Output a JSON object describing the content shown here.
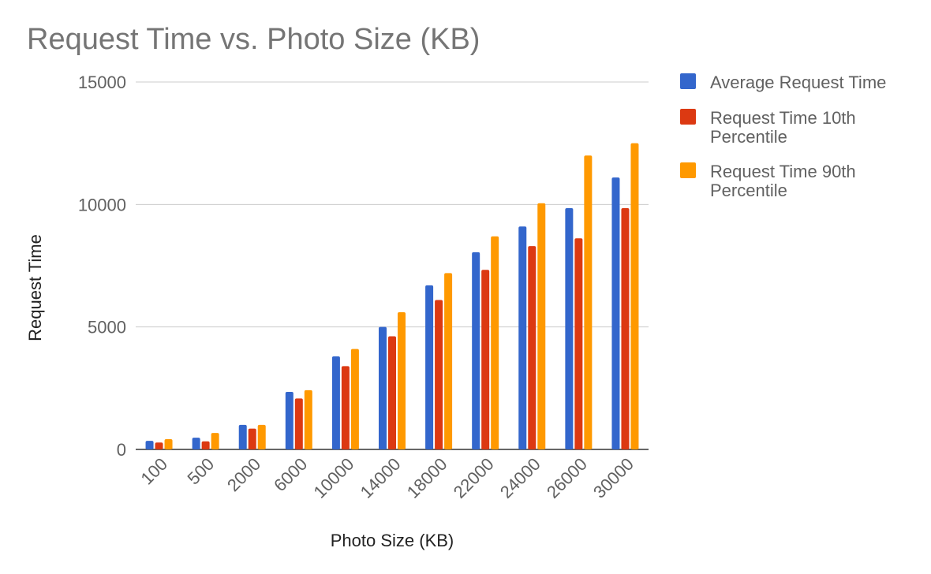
{
  "chart_data": {
    "type": "bar",
    "title": "Request Time vs. Photo Size (KB)",
    "xlabel": "Photo Size (KB)",
    "ylabel": "Request Time",
    "ylim": [
      0,
      15000
    ],
    "yticks": [
      "0",
      "5000",
      "10000",
      "15000"
    ],
    "grid": true,
    "legend_position": "right",
    "categories": [
      "100",
      "500",
      "2000",
      "6000",
      "10000",
      "14000",
      "18000",
      "22000",
      "24000",
      "26000",
      "30000"
    ],
    "series": [
      {
        "name": "Average Request Time",
        "color": "#3366cc",
        "values": [
          350,
          480,
          1000,
          2350,
          3800,
          5000,
          6700,
          8050,
          9100,
          9850,
          11100
        ]
      },
      {
        "name": "Request Time 10th Percentile",
        "legend_lines": [
          "Request Time 10th",
          "Percentile"
        ],
        "color": "#dc3912",
        "values": [
          280,
          330,
          850,
          2080,
          3400,
          4620,
          6100,
          7330,
          8300,
          8620,
          9850
        ]
      },
      {
        "name": "Request Time 90th Percentile",
        "legend_lines": [
          "Request Time 90th",
          "Percentile"
        ],
        "color": "#ff9900",
        "values": [
          420,
          670,
          1000,
          2420,
          4100,
          5600,
          7200,
          8700,
          10050,
          12000,
          12500
        ]
      }
    ]
  }
}
